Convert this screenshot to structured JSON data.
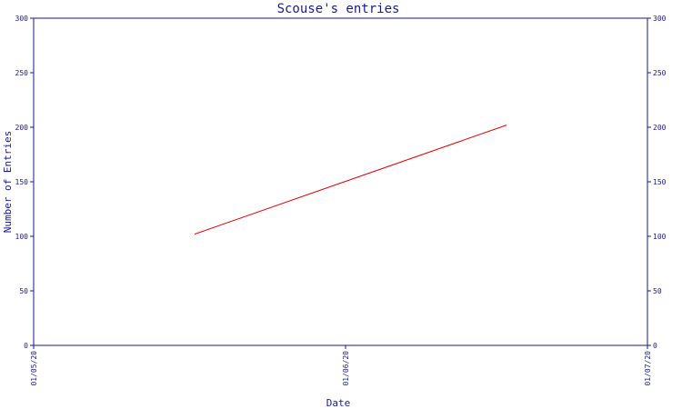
{
  "chart_data": {
    "type": "line",
    "title": "Scouse's entries",
    "xlabel": "Date",
    "ylabel": "Number of Entries",
    "x_ticks": [
      "01/05/20",
      "01/06/20",
      "01/07/20"
    ],
    "y_ticks": [
      0,
      50,
      100,
      150,
      200,
      250,
      300
    ],
    "ylim": [
      0,
      300
    ],
    "series": [
      {
        "points": [
          {
            "x": "2020-05-17",
            "y": 102
          },
          {
            "x": "2020-06-17",
            "y": 202
          }
        ]
      }
    ],
    "grid": false,
    "legend": "none",
    "y_axis_both_sides": true
  },
  "colors": {
    "axis": "#1a1a8a",
    "series_line": "#e00000",
    "background": "#ffffff"
  }
}
